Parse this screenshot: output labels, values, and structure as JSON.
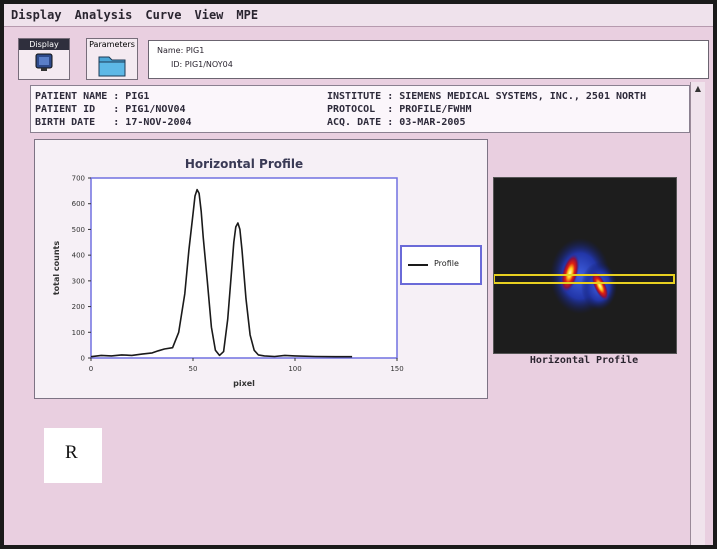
{
  "menu": [
    "Display",
    "Analysis",
    "Curve",
    "View",
    "MPE"
  ],
  "toolbar": {
    "display_label": "Display",
    "parameters_label": "Parameters"
  },
  "name_field": {
    "name": "Name: PIG1",
    "id": "ID: PIG1/NOY04"
  },
  "patient_info": {
    "left": "PATIENT NAME : PIG1\nPATIENT ID   : PIG1/NOV04\nBIRTH DATE   : 17-NOV-2004",
    "right": "INSTITUTE : SIEMENS MEDICAL SYSTEMS, INC., 2501 NORTH\nPROTOCOL  : PROFILE/FWHM\nACQ. DATE : 03-MAR-2005"
  },
  "chart_data": {
    "type": "line",
    "title": "Horizontal Profile",
    "xlabel": "pixel",
    "ylabel": "total counts",
    "xlim": [
      0,
      150
    ],
    "ylim": [
      0,
      700
    ],
    "xticks": [
      0,
      50,
      100,
      150
    ],
    "yticks": [
      0,
      100,
      200,
      300,
      400,
      500,
      600,
      700
    ],
    "grid": false,
    "legend_position": "right",
    "series": [
      {
        "name": "Profile",
        "x": [
          0,
          5,
          10,
          15,
          20,
          25,
          30,
          33,
          36,
          40,
          43,
          46,
          48,
          50,
          51,
          52,
          53,
          54,
          55,
          57,
          59,
          61,
          63,
          65,
          67,
          69,
          70,
          71,
          72,
          73,
          74,
          76,
          78,
          80,
          82,
          85,
          90,
          95,
          100,
          110,
          120,
          128
        ],
        "y": [
          5,
          10,
          8,
          12,
          10,
          15,
          20,
          28,
          35,
          40,
          100,
          250,
          420,
          560,
          630,
          655,
          640,
          570,
          470,
          300,
          120,
          30,
          10,
          25,
          150,
          350,
          450,
          510,
          525,
          500,
          420,
          230,
          90,
          30,
          12,
          8,
          6,
          10,
          8,
          6,
          5,
          5
        ]
      }
    ]
  },
  "image": {
    "caption": "Horizontal Profile"
  },
  "overlay": {
    "letter": "R"
  },
  "colors": {
    "background": "#e9cfe0",
    "curve": "#1a1a1a",
    "frame": "#7070e0",
    "title": "#3a3a55"
  }
}
